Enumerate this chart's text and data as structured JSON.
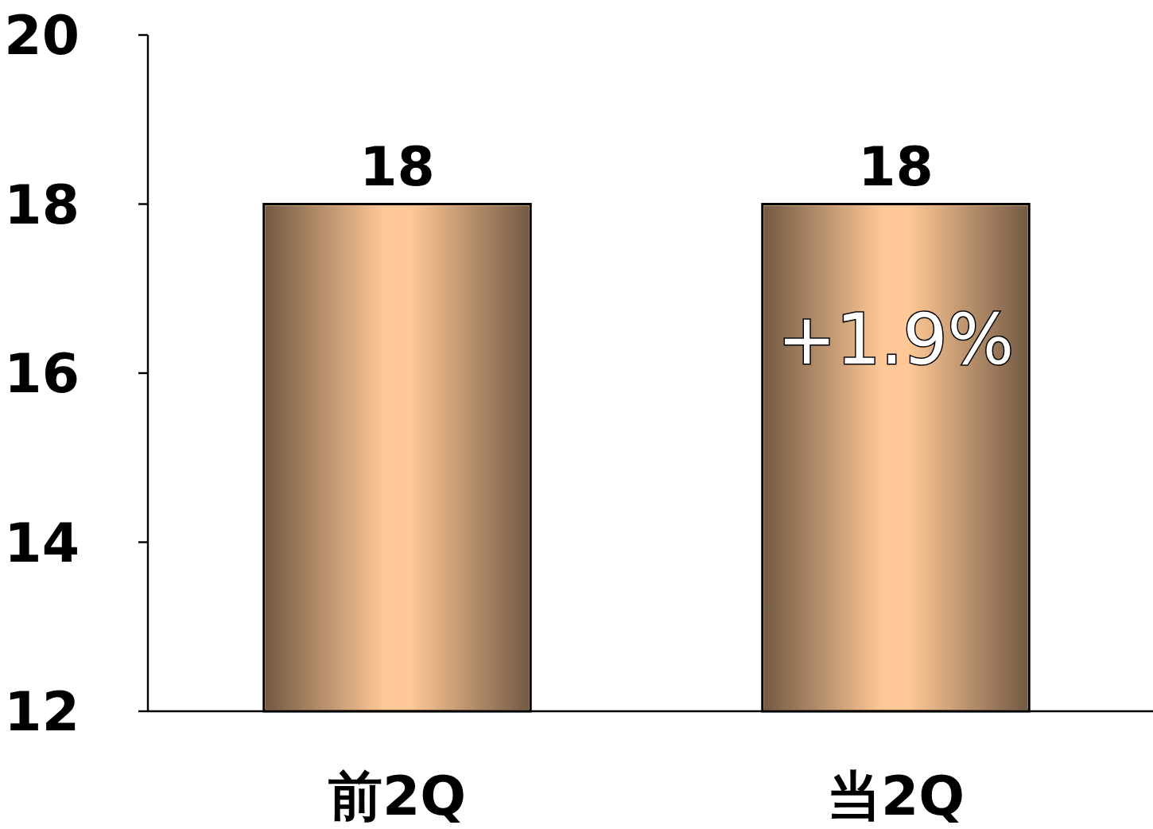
{
  "chart_data": {
    "type": "bar",
    "categories": [
      "前2Q",
      "当2Q"
    ],
    "values": [
      18,
      18
    ],
    "value_labels": [
      "18",
      "18"
    ],
    "color": "#ffc896",
    "ylim": [
      12,
      20
    ],
    "yticks": [
      12,
      14,
      16,
      18,
      20
    ],
    "grid": false,
    "annotations": [
      "+1.9%"
    ]
  }
}
